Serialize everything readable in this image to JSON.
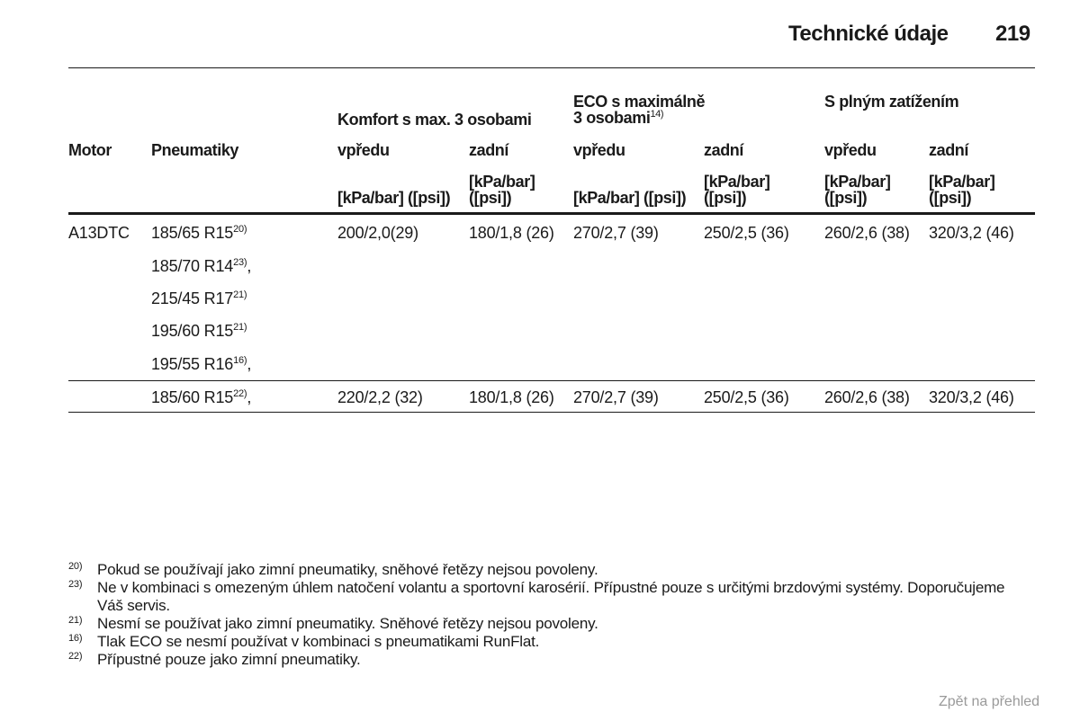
{
  "header": {
    "title": "Technické údaje",
    "page_number": "219"
  },
  "table": {
    "col_motor": "Motor",
    "col_tires": "Pneumatiky",
    "groups": [
      {
        "label": "Komfort s max. 3 osobami",
        "label_line1": "",
        "label_line2": ""
      },
      {
        "label_line1": "ECO s maximálně",
        "label_line2": "3 osobami",
        "footnote": "14)"
      },
      {
        "label": "S plným zatížením"
      }
    ],
    "front_label": "vpředu",
    "rear_label": "zadní",
    "unit_inline": "[kPa/bar] ([psi])",
    "unit_line1": "[kPa/bar]",
    "unit_line2": "([psi])",
    "rows": [
      {
        "motor": "A13DTC",
        "tires": [
          {
            "size": "185/65 R15",
            "note": "20)",
            "suffix": ""
          },
          {
            "size": "185/70 R14",
            "note": "23)",
            "suffix": ","
          },
          {
            "size": "215/45 R17",
            "note": "21)",
            "suffix": ""
          },
          {
            "size": "195/60 R15",
            "note": "21)",
            "suffix": ""
          },
          {
            "size": "195/55 R16",
            "note": "16)",
            "suffix": ","
          }
        ],
        "values": [
          "200/2,0(29)",
          "180/1,8 (26)",
          "270/2,7 (39)",
          "250/2,5 (36)",
          "260/2,6 (38)",
          "320/3,2 (46)"
        ]
      },
      {
        "motor": "",
        "tires": [
          {
            "size": "185/60 R15",
            "note": "22)",
            "suffix": ","
          }
        ],
        "values": [
          "220/2,2 (32)",
          "180/1,8 (26)",
          "270/2,7 (39)",
          "250/2,5 (36)",
          "260/2,6 (38)",
          "320/3,2 (46)"
        ]
      }
    ]
  },
  "footnotes": [
    {
      "num": "20)",
      "text": "Pokud se používají jako zimní pneumatiky, sněhové řetězy nejsou povoleny."
    },
    {
      "num": "23)",
      "text": "Ne v kombinaci s omezeným úhlem natočení volantu a sportovní karosérií. Přípustné pouze s určitými brzdovými systémy. Doporučujeme Váš servis."
    },
    {
      "num": "21)",
      "text": "Nesmí se používat jako zimní pneumatiky. Sněhové řetězy nejsou povoleny."
    },
    {
      "num": "16)",
      "text": "Tlak ECO se nesmí používat v kombinaci s pneumatikami RunFlat."
    },
    {
      "num": "22)",
      "text": "Přípustné pouze jako zimní pneumatiky."
    }
  ],
  "nav": {
    "back_label": "Zpět na přehled"
  }
}
